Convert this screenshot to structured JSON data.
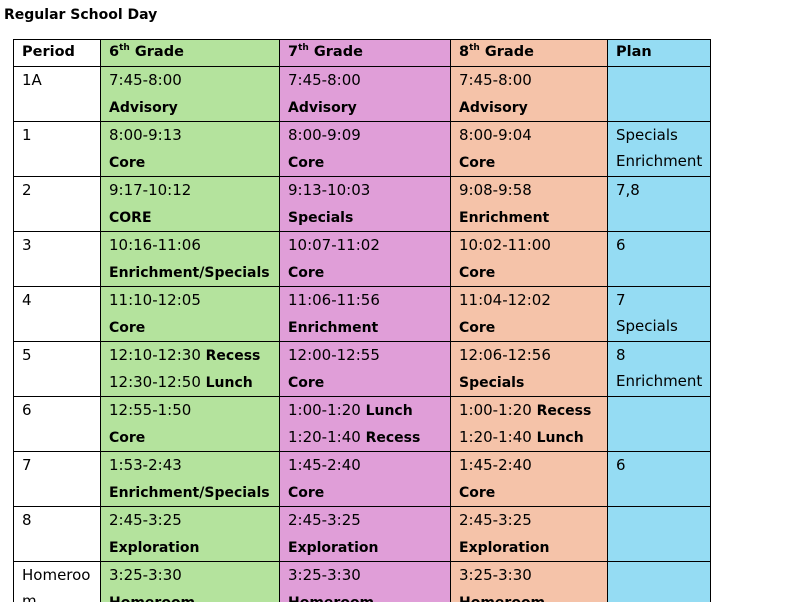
{
  "title": "Regular School Day",
  "headers": {
    "period": "Period",
    "g6_num": "6",
    "g6_sup": "th",
    "g6_word": " Grade",
    "g7_num": "7",
    "g7_sup": "th",
    "g7_word": " Grade",
    "g8_num": "8",
    "g8_sup": "th",
    "g8_word": " Grade",
    "plan": "Plan"
  },
  "colors": {
    "grade6": "#b4e39d",
    "grade7": "#e09ed8",
    "grade8": "#f5c3a9",
    "plan": "#95dcf3"
  },
  "rows": [
    {
      "period": [
        "1A"
      ],
      "g6": [
        {
          "t": "7:45-8:00",
          "b": ""
        },
        {
          "t": "",
          "b": "Advisory"
        }
      ],
      "g7": [
        {
          "t": "7:45-8:00",
          "b": ""
        },
        {
          "t": "",
          "b": "Advisory"
        }
      ],
      "g8": [
        {
          "t": "7:45-8:00",
          "b": ""
        },
        {
          "t": "",
          "b": "Advisory"
        }
      ],
      "plan": []
    },
    {
      "period": [
        "1"
      ],
      "g6": [
        {
          "t": "8:00-9:13",
          "b": ""
        },
        {
          "t": "",
          "b": "Core"
        }
      ],
      "g7": [
        {
          "t": "8:00-9:09",
          "b": ""
        },
        {
          "t": "",
          "b": "Core"
        }
      ],
      "g8": [
        {
          "t": "8:00-9:04",
          "b": ""
        },
        {
          "t": "",
          "b": "Core"
        }
      ],
      "plan": [
        "Specials",
        "Enrichment"
      ]
    },
    {
      "period": [
        "2"
      ],
      "g6": [
        {
          "t": "9:17-10:12",
          "b": ""
        },
        {
          "t": "",
          "b": "CORE"
        }
      ],
      "g7": [
        {
          "t": "9:13-10:03",
          "b": ""
        },
        {
          "t": "",
          "b": "Specials"
        }
      ],
      "g8": [
        {
          "t": "9:08-9:58",
          "b": ""
        },
        {
          "t": "",
          "b": "Enrichment"
        }
      ],
      "plan": [
        "7,8"
      ]
    },
    {
      "period": [
        "3"
      ],
      "g6": [
        {
          "t": "10:16-11:06",
          "b": ""
        },
        {
          "t": "",
          "b": "Enrichment/Specials"
        }
      ],
      "g7": [
        {
          "t": "10:07-11:02",
          "b": ""
        },
        {
          "t": "",
          "b": "Core"
        }
      ],
      "g8": [
        {
          "t": "10:02-11:00",
          "b": ""
        },
        {
          "t": "",
          "b": "Core"
        }
      ],
      "plan": [
        "6"
      ]
    },
    {
      "period": [
        "4"
      ],
      "g6": [
        {
          "t": "11:10-12:05",
          "b": ""
        },
        {
          "t": "",
          "b": "Core"
        }
      ],
      "g7": [
        {
          "t": "11:06-11:56",
          "b": ""
        },
        {
          "t": "",
          "b": "Enrichment"
        }
      ],
      "g8": [
        {
          "t": "11:04-12:02",
          "b": ""
        },
        {
          "t": "",
          "b": "Core"
        }
      ],
      "plan": [
        "7",
        "Specials"
      ]
    },
    {
      "period": [
        "5"
      ],
      "g6": [
        {
          "t": "12:10-12:30 ",
          "b": "Recess"
        },
        {
          "t": "12:30-12:50 ",
          "b": "Lunch"
        }
      ],
      "g7": [
        {
          "t": "12:00-12:55",
          "b": ""
        },
        {
          "t": "",
          "b": "Core"
        }
      ],
      "g8": [
        {
          "t": "12:06-12:56",
          "b": ""
        },
        {
          "t": "",
          "b": "Specials"
        }
      ],
      "plan": [
        "8",
        "Enrichment"
      ]
    },
    {
      "period": [
        "6"
      ],
      "g6": [
        {
          "t": "12:55-1:50",
          "b": ""
        },
        {
          "t": "",
          "b": "Core"
        }
      ],
      "g7": [
        {
          "t": "1:00-1:20 ",
          "b": "Lunch"
        },
        {
          "t": "1:20-1:40 ",
          "b": "Recess"
        }
      ],
      "g8": [
        {
          "t": "1:00-1:20 ",
          "b": "Recess"
        },
        {
          "t": "1:20-1:40 ",
          "b": "Lunch"
        }
      ],
      "plan": []
    },
    {
      "period": [
        "7"
      ],
      "g6": [
        {
          "t": "1:53-2:43",
          "b": ""
        },
        {
          "t": "",
          "b": "Enrichment/Specials"
        }
      ],
      "g7": [
        {
          "t": "1:45-2:40",
          "b": ""
        },
        {
          "t": "",
          "b": "Core"
        }
      ],
      "g8": [
        {
          "t": "1:45-2:40",
          "b": ""
        },
        {
          "t": "",
          "b": "Core"
        }
      ],
      "plan": [
        "6"
      ]
    },
    {
      "period": [
        "8"
      ],
      "g6": [
        {
          "t": "2:45-3:25",
          "b": ""
        },
        {
          "t": "",
          "b": "Exploration"
        }
      ],
      "g7": [
        {
          "t": "2:45-3:25",
          "b": ""
        },
        {
          "t": "",
          "b": "Exploration"
        }
      ],
      "g8": [
        {
          "t": "2:45-3:25",
          "b": ""
        },
        {
          "t": "",
          "b": "Exploration"
        }
      ],
      "plan": []
    },
    {
      "period": [
        "Homeroo",
        "m"
      ],
      "g6": [
        {
          "t": "3:25-3:30",
          "b": ""
        },
        {
          "t": "",
          "b": "Homeroom"
        }
      ],
      "g7": [
        {
          "t": "3:25-3:30",
          "b": ""
        },
        {
          "t": "",
          "b": "Homeroom"
        }
      ],
      "g8": [
        {
          "t": "3:25-3:30",
          "b": ""
        },
        {
          "t": "",
          "b": "Homeroom"
        }
      ],
      "plan": []
    }
  ]
}
